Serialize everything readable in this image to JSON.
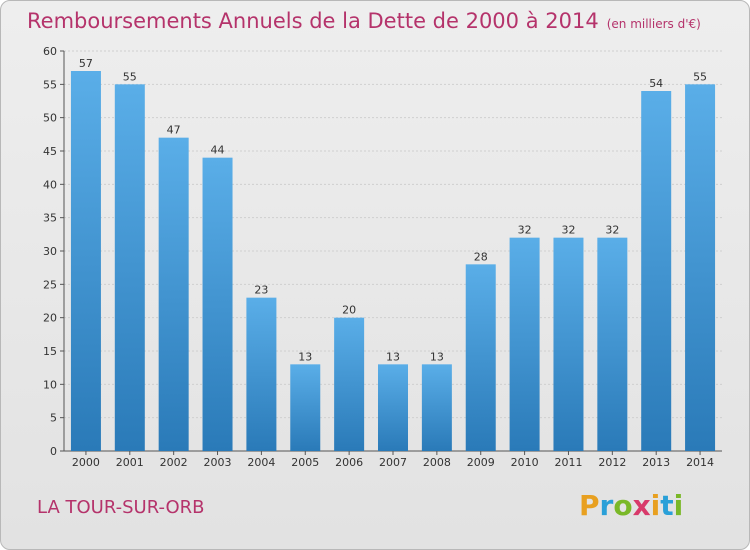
{
  "title": "Remboursements Annuels de la Dette de 2000 à 2014",
  "unit": "(en milliers d'€)",
  "commune": "LA TOUR-SUR-ORB",
  "logo": {
    "letters": [
      "P",
      "r",
      "o",
      "x",
      "i",
      "t",
      "i"
    ],
    "colors": [
      "#e8a020",
      "#2aa0d8",
      "#7ab828",
      "#d83a6a",
      "#e8a020",
      "#2aa0d8",
      "#7ab828"
    ]
  },
  "colors": {
    "bar_top": "#5aaee8",
    "bar_bottom": "#2a7ab8",
    "title": "#b5336b"
  },
  "chart_data": {
    "type": "bar",
    "categories": [
      "2000",
      "2001",
      "2002",
      "2003",
      "2004",
      "2005",
      "2006",
      "2007",
      "2008",
      "2009",
      "2010",
      "2011",
      "2012",
      "2013",
      "2014"
    ],
    "values": [
      57,
      55,
      47,
      44,
      23,
      13,
      20,
      13,
      13,
      28,
      32,
      32,
      32,
      54,
      55
    ],
    "title": "Remboursements Annuels de la Dette de 2000 à 2014",
    "xlabel": "",
    "ylabel": "",
    "ylim": [
      0,
      60
    ],
    "yticks": [
      0,
      5,
      10,
      15,
      20,
      25,
      30,
      35,
      40,
      45,
      50,
      55,
      60
    ],
    "grid": true,
    "data_labels": true
  }
}
